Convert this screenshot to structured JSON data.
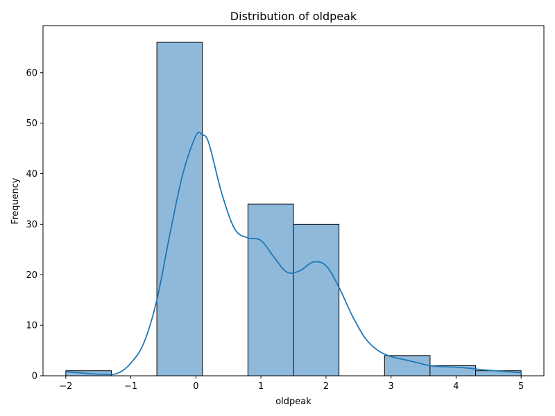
{
  "chart_data": {
    "type": "bar",
    "title": "Distribution of oldpeak",
    "xlabel": "oldpeak",
    "ylabel": "Frequency",
    "xlim": [
      -2.35,
      5.35
    ],
    "ylim": [
      0,
      69.3
    ],
    "grid": false,
    "x_ticks": [
      -2,
      -1,
      0,
      1,
      2,
      3,
      4,
      5
    ],
    "x_tick_labels": [
      "−2",
      "−1",
      "0",
      "1",
      "2",
      "3",
      "4",
      "5"
    ],
    "y_ticks": [
      0,
      10,
      20,
      30,
      40,
      50,
      60
    ],
    "y_tick_labels": [
      "0",
      "10",
      "20",
      "30",
      "40",
      "50",
      "60"
    ],
    "bin_edges": [
      -2.0,
      -1.3,
      -0.6,
      0.1,
      0.8,
      1.5,
      2.2,
      2.9,
      3.6,
      4.3,
      5.0
    ],
    "values": [
      1,
      0,
      66,
      0,
      34,
      30,
      0,
      4,
      2,
      1
    ],
    "bar_color": "#8fb9db",
    "bar_edge_color": "#000000",
    "kde": {
      "color": "#1f77b4",
      "x": [
        -2.0,
        -1.8,
        -1.6,
        -1.4,
        -1.2,
        -1.0,
        -0.8,
        -0.6,
        -0.4,
        -0.2,
        0.0,
        0.1,
        0.2,
        0.4,
        0.6,
        0.8,
        1.0,
        1.2,
        1.4,
        1.6,
        1.8,
        2.0,
        2.2,
        2.4,
        2.6,
        2.8,
        3.0,
        3.2,
        3.4,
        3.6,
        3.8,
        4.0,
        4.2,
        4.4,
        4.6,
        4.8,
        5.0
      ],
      "y": [
        0.8,
        0.6,
        0.4,
        0.3,
        0.5,
        2.5,
        6.5,
        15,
        28,
        40,
        47.5,
        47.7,
        46,
        36,
        29,
        27.3,
        26.8,
        23.5,
        20.5,
        20.8,
        22.5,
        21.8,
        17.5,
        12,
        7.5,
        5,
        3.8,
        3.2,
        2.6,
        2.0,
        1.8,
        1.7,
        1.5,
        1.2,
        1.0,
        0.8,
        0.6
      ]
    }
  }
}
